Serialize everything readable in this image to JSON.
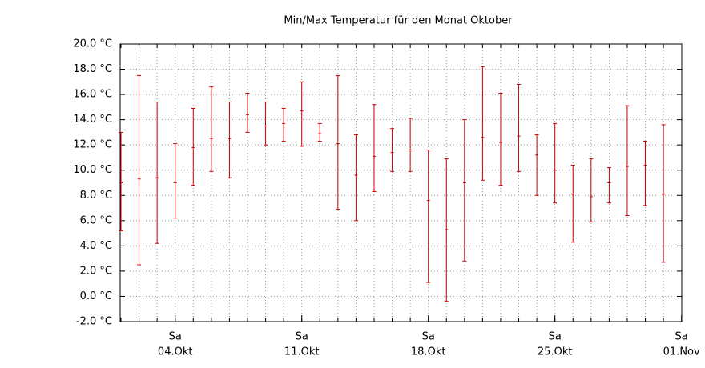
{
  "chart_data": {
    "type": "errorbar",
    "title": "Min/Max Temperatur für den Monat Oktober",
    "categories": [
      "01.Okt",
      "02.Okt",
      "03.Okt",
      "04.Okt",
      "05.Okt",
      "06.Okt",
      "07.Okt",
      "08.Okt",
      "09.Okt",
      "10.Okt",
      "11.Okt",
      "12.Okt",
      "13.Okt",
      "14.Okt",
      "15.Okt",
      "16.Okt",
      "17.Okt",
      "18.Okt",
      "19.Okt",
      "20.Okt",
      "21.Okt",
      "22.Okt",
      "23.Okt",
      "24.Okt",
      "25.Okt",
      "26.Okt",
      "27.Okt",
      "28.Okt",
      "29.Okt",
      "30.Okt",
      "31.Okt"
    ],
    "max": [
      13.0,
      17.5,
      15.4,
      12.1,
      14.9,
      16.6,
      15.4,
      16.1,
      15.4,
      14.9,
      17.0,
      13.7,
      17.5,
      12.8,
      15.2,
      13.3,
      14.1,
      11.6,
      10.9,
      14.0,
      18.2,
      16.1,
      16.8,
      12.8,
      13.7,
      10.4,
      10.9,
      10.2,
      15.1,
      12.3,
      13.6
    ],
    "mean": [
      9.0,
      9.3,
      9.4,
      9.0,
      11.8,
      12.5,
      12.5,
      14.4,
      13.5,
      13.7,
      14.7,
      12.9,
      12.1,
      9.6,
      11.1,
      11.4,
      11.6,
      7.6,
      5.3,
      9.0,
      12.6,
      12.2,
      12.7,
      11.2,
      10.0,
      8.1,
      7.9,
      9.0,
      10.3,
      10.4,
      8.1
    ],
    "min": [
      5.2,
      2.5,
      4.2,
      6.2,
      8.8,
      9.9,
      9.4,
      13.0,
      12.0,
      12.3,
      11.9,
      12.3,
      6.9,
      6.0,
      8.3,
      9.9,
      9.9,
      1.1,
      -0.4,
      2.8,
      9.2,
      8.8,
      9.9,
      8.0,
      7.4,
      4.3,
      5.9,
      7.4,
      6.4,
      7.2,
      2.7
    ],
    "color": "#cc0000",
    "ylim": [
      -2,
      20
    ],
    "yticks": [
      {
        "value": -2,
        "label": "-2.0 °C"
      },
      {
        "value": 0,
        "label": "0.0 °C"
      },
      {
        "value": 2,
        "label": "2.0 °C"
      },
      {
        "value": 4,
        "label": "4.0 °C"
      },
      {
        "value": 6,
        "label": "6.0 °C"
      },
      {
        "value": 8,
        "label": "8.0 °C"
      },
      {
        "value": 10,
        "label": "10.0 °C"
      },
      {
        "value": 12,
        "label": "12.0 °C"
      },
      {
        "value": 14,
        "label": "14.0 °C"
      },
      {
        "value": 16,
        "label": "16.0 °C"
      },
      {
        "value": 18,
        "label": "18.0 °C"
      },
      {
        "value": 20,
        "label": "20.0 °C"
      }
    ],
    "xticks": [
      {
        "value": "04.Okt",
        "weekday": "Sa"
      },
      {
        "value": "11.Okt",
        "weekday": "Sa"
      },
      {
        "value": "18.Okt",
        "weekday": "Sa"
      },
      {
        "value": "25.Okt",
        "weekday": "Sa"
      },
      {
        "value": "01.Nov",
        "weekday": "Sa"
      }
    ],
    "grid": true
  }
}
